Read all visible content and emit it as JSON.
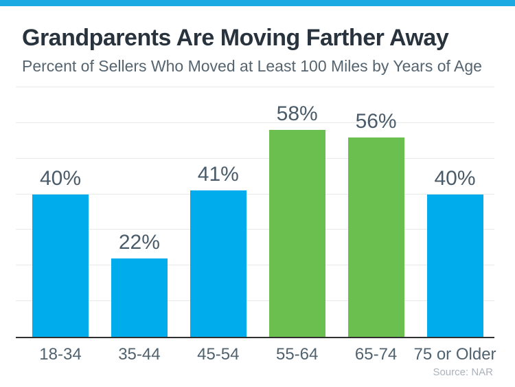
{
  "page": {
    "accent_color": "#1CAAE2",
    "background_color": "#FFFFFF"
  },
  "chart_data": {
    "type": "bar",
    "title": "Grandparents Are Moving Farther Away",
    "subtitle": "Percent of Sellers Who Moved at Least 100 Miles by Years of Age",
    "source": "Source: NAR",
    "categories": [
      "18-34",
      "35-44",
      "45-54",
      "55-64",
      "65-74",
      "75 or Older"
    ],
    "values": [
      40,
      22,
      41,
      58,
      56,
      40
    ],
    "value_labels": [
      "40%",
      "22%",
      "41%",
      "58%",
      "56%",
      "40%"
    ],
    "bar_colors": [
      "#00ACEC",
      "#00ACEC",
      "#00ACEC",
      "#6BBF4F",
      "#6BBF4F",
      "#00ACEC"
    ],
    "colors": {
      "bar_blue": "#00ACEC",
      "bar_green": "#6BBF4F",
      "gridline": "#E8EAEA",
      "axis_line": "#303030",
      "title_text": "#29333D",
      "subtitle_text": "#55646F",
      "label_text": "#4A5B69",
      "source_text": "#AAB2BA"
    },
    "xlabel": "",
    "ylabel": "",
    "ylim": [
      0,
      70
    ],
    "gridline_step": 10,
    "grid": true,
    "legend": false
  }
}
